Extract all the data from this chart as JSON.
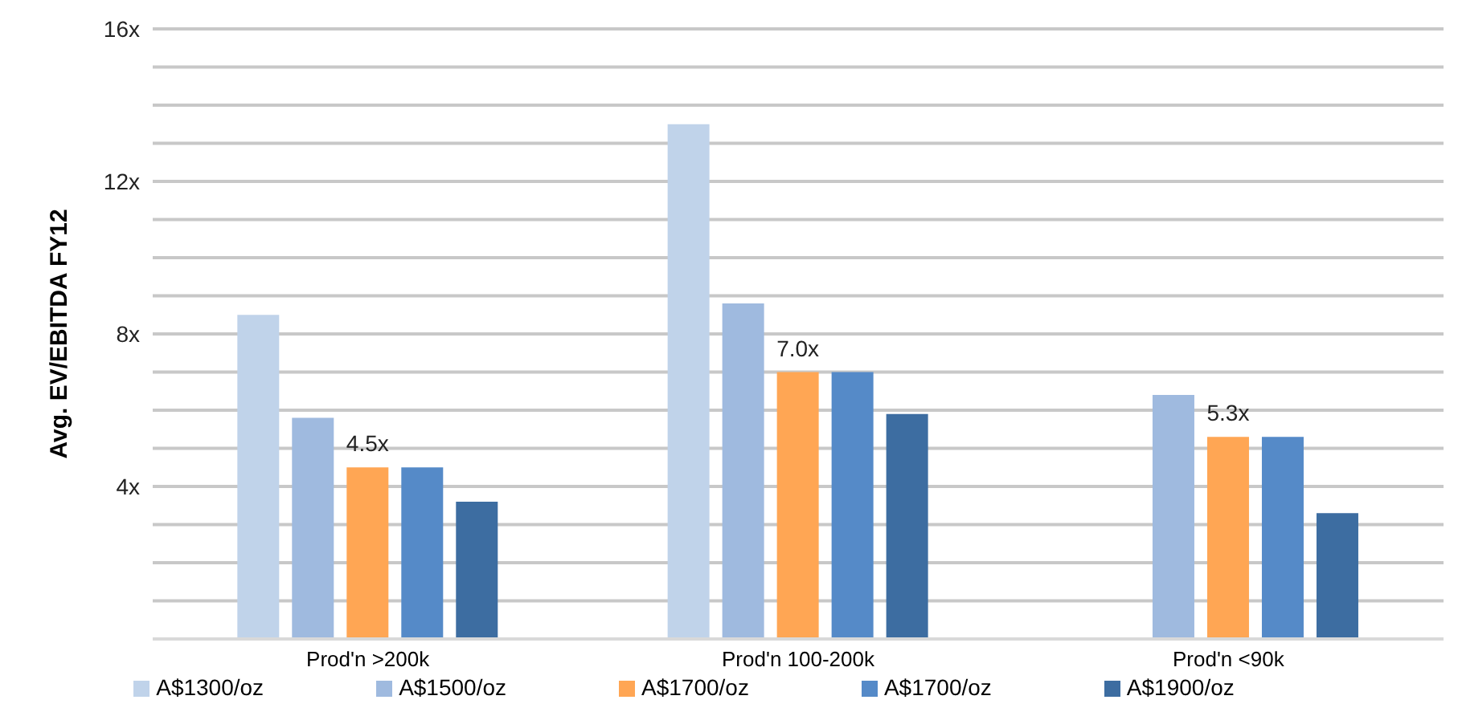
{
  "chart_data": {
    "type": "bar",
    "ylabel": "Avg. EV/EBITDA FY12",
    "categories": [
      "Prod'n >200k",
      "Prod'n 100-200k",
      "Prod'n <90k"
    ],
    "series": [
      {
        "name": "A$1300/oz",
        "color": "#c0d3ea",
        "values": [
          8.5,
          13.5,
          null
        ]
      },
      {
        "name": "A$1500/oz",
        "color": "#9fbadf",
        "values": [
          5.8,
          8.8,
          6.4
        ]
      },
      {
        "name": "A$1700/oz",
        "color": "#ffa654",
        "values": [
          4.5,
          7.0,
          5.3
        ],
        "value_labels": [
          "4.5x",
          "7.0x",
          "5.3x"
        ]
      },
      {
        "name": "A$1700/oz",
        "color": "#558ac8",
        "values": [
          4.5,
          7.0,
          5.3
        ]
      },
      {
        "name": "A$1900/oz",
        "color": "#3d6da1",
        "values": [
          3.6,
          5.9,
          3.3
        ]
      }
    ],
    "ylim": [
      0,
      16
    ],
    "yticks": [
      {
        "value": 0,
        "label": null
      },
      {
        "value": 1,
        "label": null
      },
      {
        "value": 2,
        "label": null
      },
      {
        "value": 3,
        "label": null
      },
      {
        "value": 4,
        "label": "4x"
      },
      {
        "value": 5,
        "label": null
      },
      {
        "value": 6,
        "label": null
      },
      {
        "value": 7,
        "label": null
      },
      {
        "value": 8,
        "label": "8x"
      },
      {
        "value": 9,
        "label": null
      },
      {
        "value": 10,
        "label": null
      },
      {
        "value": 11,
        "label": null
      },
      {
        "value": 12,
        "label": "12x"
      },
      {
        "value": 13,
        "label": null
      },
      {
        "value": 14,
        "label": null
      },
      {
        "value": 15,
        "label": null
      },
      {
        "value": 16,
        "label": "16x"
      }
    ],
    "grid": "y",
    "legend": "bottom"
  }
}
